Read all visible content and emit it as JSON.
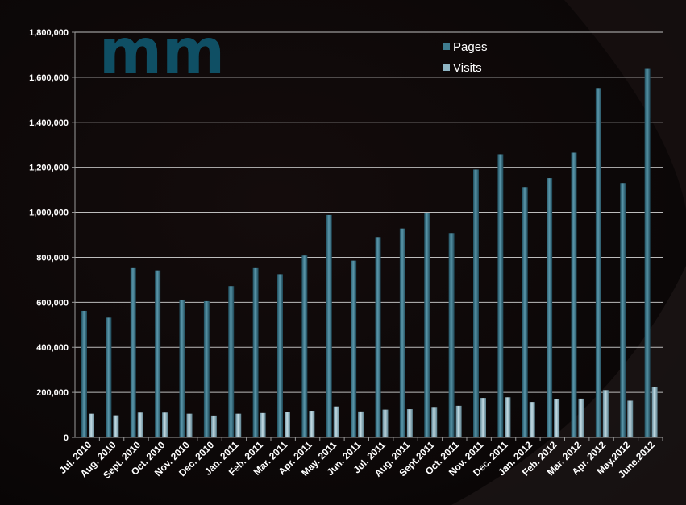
{
  "chart_data": {
    "type": "bar",
    "categories": [
      "Jul. 2010",
      "Aug. 2010",
      "Sept. 2010",
      "Oct. 2010",
      "Nov. 2010",
      "Dec. 2010",
      "Jan. 2011",
      "Feb. 2011",
      "Mar. 2011",
      "Apr. 2011",
      "May. 2011",
      "Jun. 2011",
      "Jul. 2011",
      "Aug. 2011",
      "Sept.2011",
      "Oct. 2011",
      "Nov. 2011",
      "Dec. 2011",
      "Jan. 2012",
      "Feb. 2012",
      "Mar. 2012",
      "Apr. 2012",
      "May.2012",
      "June.2012"
    ],
    "series": [
      {
        "name": "Pages",
        "color": "#3a7588",
        "values": [
          562000,
          532000,
          752000,
          742000,
          612000,
          605000,
          672000,
          752000,
          725000,
          808000,
          988000,
          785000,
          890000,
          928000,
          998000,
          908000,
          1190000,
          1258000,
          1112000,
          1152000,
          1265000,
          1552000,
          1130000,
          1637000
        ]
      },
      {
        "name": "Visits",
        "color": "#8fb5c4",
        "values": [
          105000,
          98000,
          110000,
          110000,
          105000,
          97000,
          105000,
          108000,
          112000,
          118000,
          137000,
          115000,
          123000,
          125000,
          135000,
          140000,
          175000,
          178000,
          157000,
          170000,
          172000,
          210000,
          163000,
          225000
        ]
      }
    ],
    "yticks": [
      "0",
      "200,000",
      "400,000",
      "600,000",
      "800,000",
      "1,000,000",
      "1,200,000",
      "1,400,000",
      "1,600,000",
      "1,800,000"
    ],
    "ylim": [
      0,
      1800000
    ],
    "grid": true,
    "legend_position": "top-right",
    "title": "",
    "xlabel": "",
    "ylabel": ""
  },
  "logo": {
    "text": "mm",
    "color": "#0f4f64"
  }
}
